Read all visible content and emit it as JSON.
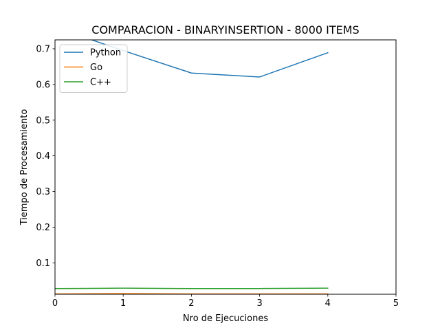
{
  "chart_data": {
    "type": "line",
    "title": "COMPARACION - BINARYINSERTION - 8000 ITEMS",
    "xlabel": "Nro de Ejecuciones",
    "ylabel": "Tiempo de Procesamiento",
    "xlim": [
      0,
      5
    ],
    "ylim": [
      0.012,
      0.725
    ],
    "xticks": [
      0,
      1,
      2,
      3,
      4,
      5
    ],
    "yticks": [
      0.1,
      0.2,
      0.3,
      0.4,
      0.5,
      0.6,
      0.7
    ],
    "x": [
      0,
      1,
      2,
      3,
      4
    ],
    "grid": false,
    "legend_position": "top-left",
    "series": [
      {
        "name": "Python",
        "color": "#1f77b4",
        "values": [
          0.76,
          0.695,
          0.632,
          0.621,
          0.689
        ]
      },
      {
        "name": "Go",
        "color": "#ff7f0e",
        "values": [
          0.013,
          0.014,
          0.013,
          0.013,
          0.013
        ]
      },
      {
        "name": "C++",
        "color": "#2ca02c",
        "values": [
          0.028,
          0.029,
          0.028,
          0.028,
          0.029
        ]
      }
    ]
  }
}
